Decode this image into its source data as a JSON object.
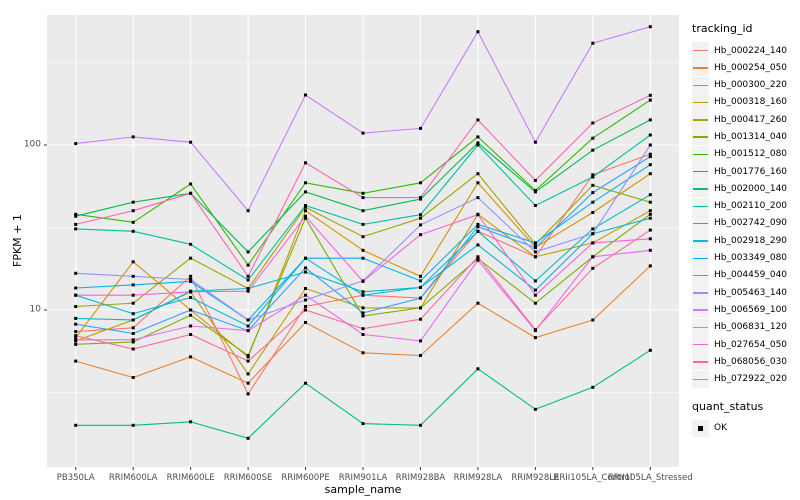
{
  "chart_data": {
    "type": "line",
    "title": "",
    "xlabel": "sample_name",
    "ylabel": "FPKM + 1",
    "yscale": "log10",
    "yticks": [
      10,
      100
    ],
    "ylim": [
      1.1,
      615
    ],
    "grid": "major+minor horizontal white on grey panel, vertical at each category",
    "legend_position": "right",
    "legend_title": "tracking_id",
    "point_marker": "filled-black-square",
    "categories": [
      "PB350LA",
      "RRIM600LA",
      "RRIM600LE",
      "RRIM600SE",
      "RRIM600PE",
      "RRIM901LA",
      "RRIM928BA",
      "RRIM928LA",
      "RRIM928LE",
      "RRII105LA_Control",
      "RRII105LA_Stressed"
    ],
    "series": [
      {
        "name": "Hb_000224_140",
        "color": "#F8766D",
        "values": [
          7.4,
          7.8,
          16,
          3.1,
          10.5,
          12.3,
          11.8,
          30,
          21,
          66,
          88
        ]
      },
      {
        "name": "Hb_000254_050",
        "color": "#EA8331",
        "values": [
          4.9,
          3.9,
          5.2,
          3.6,
          8.4,
          5.5,
          5.3,
          11,
          6.8,
          8.7,
          18.5
        ]
      },
      {
        "name": "Hb_000300_220",
        "color": "#D89000",
        "values": [
          6.8,
          19.6,
          10,
          5.2,
          40,
          23,
          16,
          59,
          24,
          39,
          67
        ]
      },
      {
        "name": "Hb_000318_160",
        "color": "#C09B00",
        "values": [
          6.5,
          8.7,
          12.9,
          4.1,
          13.5,
          10.3,
          10.3,
          38,
          21,
          25.5,
          40
        ]
      },
      {
        "name": "Hb_000417_260",
        "color": "#A3A500",
        "values": [
          10.5,
          11,
          20.6,
          13.5,
          42,
          27.8,
          36,
          67,
          25,
          57,
          45
        ]
      },
      {
        "name": "Hb_001314_040",
        "color": "#7CAE00",
        "values": [
          6.2,
          6.4,
          9.3,
          5.3,
          36,
          9.2,
          10.3,
          20.5,
          11,
          21,
          38
        ]
      },
      {
        "name": "Hb_001512_080",
        "color": "#39B600",
        "values": [
          38,
          34,
          58,
          18.7,
          59,
          51,
          59,
          112,
          53,
          110,
          187
        ]
      },
      {
        "name": "Hb_001776_160",
        "color": "#00BB4E",
        "values": [
          37,
          45,
          51,
          22.5,
          52,
          40,
          47,
          103,
          52,
          93,
          142
        ]
      },
      {
        "name": "Hb_002000_140",
        "color": "#00BF7D",
        "values": [
          2.0,
          2.0,
          2.1,
          1.67,
          3.6,
          2.05,
          2.0,
          4.4,
          2.5,
          3.4,
          5.7
        ]
      },
      {
        "name": "Hb_002110_200",
        "color": "#00C1A3",
        "values": [
          31,
          30,
          25,
          15.2,
          43,
          33,
          37.8,
          100,
          43,
          64,
          115
        ]
      },
      {
        "name": "Hb_002742_090",
        "color": "#00BFC4",
        "values": [
          8.9,
          8.7,
          13,
          13.5,
          17,
          12.9,
          13.7,
          30,
          15,
          31,
          50
        ]
      },
      {
        "name": "Hb_002918_290",
        "color": "#00BAE0",
        "values": [
          12.3,
          9.5,
          11.9,
          8.0,
          20.6,
          12.3,
          13.7,
          24.8,
          13.2,
          29,
          36
        ]
      },
      {
        "name": "Hb_003349_080",
        "color": "#00B0F6",
        "values": [
          13.6,
          14.2,
          14.9,
          8.7,
          20.6,
          20.6,
          15,
          33,
          25.5,
          45,
          76
        ]
      },
      {
        "name": "Hb_004459_040",
        "color": "#35A2FF",
        "values": [
          8.2,
          7.2,
          10.0,
          7.5,
          18,
          9.6,
          11.8,
          32,
          23.9,
          51.5,
          85
        ]
      },
      {
        "name": "Hb_005463_140",
        "color": "#9590FF",
        "values": [
          16.7,
          16,
          15.3,
          8.7,
          11.5,
          15,
          32.8,
          48,
          22.5,
          29,
          100
        ]
      },
      {
        "name": "Hb_006569_100",
        "color": "#C77CFF",
        "values": [
          102,
          112,
          104,
          40,
          201,
          118,
          126,
          486,
          104,
          414,
          521
        ]
      },
      {
        "name": "Hb_006831_120",
        "color": "#E76BF3",
        "values": [
          6.6,
          6.6,
          8.0,
          7.5,
          12.3,
          7.1,
          6.5,
          20,
          7.5,
          21,
          23
        ]
      },
      {
        "name": "Hb_027654_050",
        "color": "#FA62DB",
        "values": [
          12.3,
          12.3,
          12.9,
          13.0,
          37,
          14.9,
          28.6,
          37.8,
          12.3,
          25.5,
          27
        ]
      },
      {
        "name": "Hb_068056_030",
        "color": "#FF62BC",
        "values": [
          33,
          40,
          51,
          16,
          78,
          48,
          48,
          142,
          61,
          136,
          200
        ]
      },
      {
        "name": "Hb_072922_020",
        "color": "#FF6A98",
        "values": [
          7.0,
          5.8,
          7.1,
          4.9,
          10,
          7.7,
          8.8,
          21,
          7.6,
          17.9,
          30.5
        ]
      }
    ],
    "legend2": {
      "title": "quant_status",
      "items": [
        {
          "label": "OK",
          "marker": "filled-black-square"
        }
      ]
    }
  },
  "colors": {
    "panel_background": "#EBEBEB",
    "gridline": "#FFFFFF",
    "tick_text": "#4D4D4D",
    "axis_title_text": "#000000",
    "point": "#000000",
    "legend_key_background": "#F2F2F2"
  }
}
